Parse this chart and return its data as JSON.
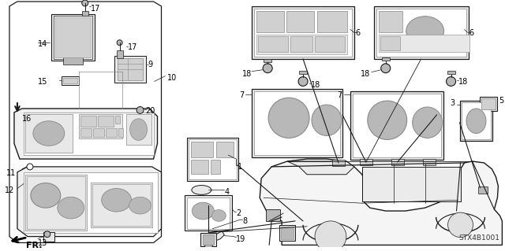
{
  "background_color": "#ffffff",
  "line_color": "#1a1a1a",
  "diagram_id": "STX4B1001",
  "figsize": [
    6.4,
    3.19
  ],
  "dpi": 100,
  "font_size": 7,
  "gray_light": "#e8e8e8",
  "gray_med": "#b8b8b8",
  "gray_dark": "#888888",
  "gray_fill": "#d0d0d0"
}
